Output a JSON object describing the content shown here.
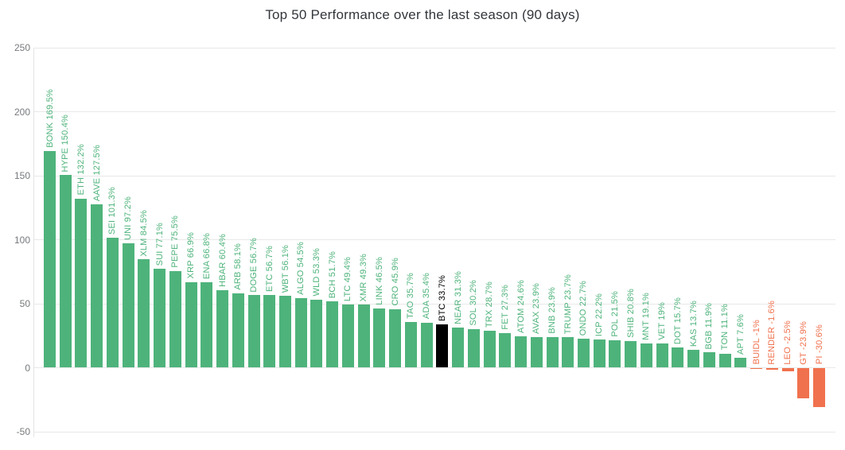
{
  "header": {
    "title": "Top 50 Performance over the last season (90 days)"
  },
  "colors": {
    "positive": "#4eb37b",
    "negative": "#f0714d",
    "highlight": "#000000",
    "grid": "#e8e8e8",
    "axis": "#e4e4e4",
    "tick_label": "#77797c",
    "title_text": "#32363b",
    "background": "#ffffff"
  },
  "chart_data": {
    "type": "bar",
    "title": "Top 50 Performance over the last season (90 days)",
    "xlabel": "",
    "ylabel": "",
    "ylim": [
      -50,
      250
    ],
    "yticks": [
      250,
      200,
      150,
      100,
      50,
      0,
      -50
    ],
    "grid": "horizontal",
    "legend": "none",
    "bar_label_rotation_deg": 90,
    "highlight_category": "BTC",
    "categories": [
      "BONK",
      "HYPE",
      "ETH",
      "AAVE",
      "SEI",
      "UNI",
      "XLM",
      "SUI",
      "PEPE",
      "XRP",
      "ENA",
      "HBAR",
      "ARB",
      "DOGE",
      "ETC",
      "WBT",
      "ALGO",
      "WLD",
      "BCH",
      "LTC",
      "XMR",
      "LINK",
      "CRO",
      "TAO",
      "ADA",
      "BTC",
      "NEAR",
      "SOL",
      "TRX",
      "FET",
      "ATOM",
      "AVAX",
      "BNB",
      "TRUMP",
      "ONDO",
      "ICP",
      "POL",
      "SHIB",
      "MNT",
      "VET",
      "DOT",
      "KAS",
      "BGB",
      "TON",
      "APT",
      "BUIDL",
      "RENDER",
      "LEO",
      "GT",
      "PI"
    ],
    "values": [
      169.5,
      150.4,
      132.2,
      127.5,
      101.3,
      97.2,
      84.5,
      77.1,
      75.5,
      66.9,
      66.8,
      60.4,
      58.1,
      56.7,
      56.7,
      56.1,
      54.5,
      53.3,
      51.7,
      49.4,
      49.3,
      46.5,
      45.9,
      35.7,
      35.4,
      33.7,
      31.3,
      30.2,
      28.7,
      27.3,
      24.6,
      23.9,
      23.9,
      23.7,
      22.7,
      22.2,
      21.5,
      20.8,
      19.1,
      19,
      15.7,
      13.7,
      11.9,
      11.1,
      7.6,
      -1,
      -1.6,
      -2.5,
      -23.9,
      -30.6
    ],
    "bar_labels": [
      "BONK 169.5%",
      "HYPE 150.4%",
      "ETH 132.2%",
      "AAVE 127.5%",
      "SEI 101.3%",
      "UNI 97.2%",
      "XLM 84.5%",
      "SUI 77.1%",
      "PEPE 75.5%",
      "XRP 66.9%",
      "ENA 66.8%",
      "HBAR 60.4%",
      "ARB 58.1%",
      "DOGE 56.7%",
      "ETC 56.7%",
      "WBT 56.1%",
      "ALGO 54.5%",
      "WLD 53.3%",
      "BCH 51.7%",
      "LTC 49.4%",
      "XMR 49.3%",
      "LINK 46.5%",
      "CRO 45.9%",
      "TAO 35.7%",
      "ADA 35.4%",
      "BTC 33.7%",
      "NEAR 31.3%",
      "SOL 30.2%",
      "TRX 28.7%",
      "FET 27.3%",
      "ATOM 24.6%",
      "AVAX 23.9%",
      "BNB 23.9%",
      "TRUMP 23.7%",
      "ONDO 22.7%",
      "ICP 22.2%",
      "POL 21.5%",
      "SHIB 20.8%",
      "MNT 19.1%",
      "VET 19%",
      "DOT 15.7%",
      "KAS 13.7%",
      "BGB 11.9%",
      "TON 11.1%",
      "APT 7.6%",
      "BUIDL -1%",
      "RENDER -1.6%",
      "LEO -2.5%",
      "GT -23.9%",
      "PI -30.6%"
    ]
  }
}
